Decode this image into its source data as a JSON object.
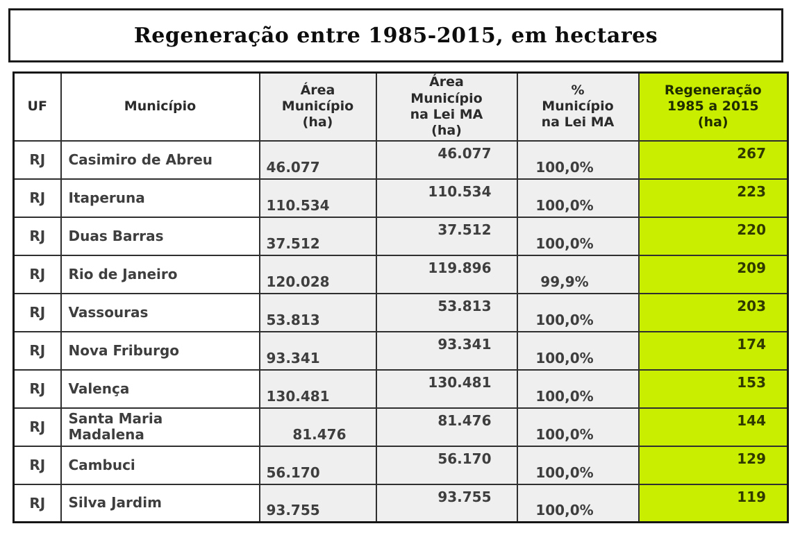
{
  "page_title": "Regeneração entre 1985-2015, em hectares",
  "colors": {
    "highlight_green": "#c9ee00",
    "muted_gray": "#efefef",
    "border_dark": "#1a1a1a"
  },
  "chart_data": {
    "type": "table",
    "title": "Regeneração entre 1985-2015, em hectares",
    "columns": [
      {
        "key": "uf",
        "label": "UF",
        "lines": [
          "UF"
        ],
        "group": "plain"
      },
      {
        "key": "municipio",
        "label": "Município",
        "lines": [
          "Município"
        ],
        "group": "plain"
      },
      {
        "key": "area",
        "label": "Área Município (ha)",
        "lines": [
          "Área",
          "Município",
          "(ha)"
        ],
        "group": "muted"
      },
      {
        "key": "area_lei",
        "label": "Área Município na Lei MA (ha)",
        "lines": [
          "Área",
          "Município",
          "na Lei MA",
          "(ha)"
        ],
        "group": "muted"
      },
      {
        "key": "pct",
        "label": "% Município na Lei MA",
        "lines": [
          "%",
          "Município",
          "na Lei MA"
        ],
        "group": "muted"
      },
      {
        "key": "reg",
        "label": "Regeneração 1985 a 2015 (ha)",
        "lines": [
          "Regeneração",
          "1985 a 2015",
          "(ha)"
        ],
        "group": "highlight"
      }
    ],
    "rows": [
      {
        "uf": "RJ",
        "municipio": "Casimiro de Abreu",
        "area": "46.077",
        "area_lei": "46.077",
        "pct": "100,0%",
        "reg": "267"
      },
      {
        "uf": "RJ",
        "municipio": "Itaperuna",
        "area": "110.534",
        "area_lei": "110.534",
        "pct": "100,0%",
        "reg": "223"
      },
      {
        "uf": "RJ",
        "municipio": "Duas Barras",
        "area": "37.512",
        "area_lei": "37.512",
        "pct": "100,0%",
        "reg": "220"
      },
      {
        "uf": "RJ",
        "municipio": "Rio de Janeiro",
        "area": "120.028",
        "area_lei": "119.896",
        "pct": "99,9%",
        "reg": "209"
      },
      {
        "uf": "RJ",
        "municipio": "Vassouras",
        "area": "53.813",
        "area_lei": "53.813",
        "pct": "100,0%",
        "reg": "203"
      },
      {
        "uf": "RJ",
        "municipio": "Nova Friburgo",
        "area": "93.341",
        "area_lei": "93.341",
        "pct": "100,0%",
        "reg": "174"
      },
      {
        "uf": "RJ",
        "municipio": "Valença",
        "area": "130.481",
        "area_lei": "130.481",
        "pct": "100,0%",
        "reg": "153"
      },
      {
        "uf": "RJ",
        "municipio": [
          "Santa Maria",
          "Madalena"
        ],
        "area": "81.476",
        "area_align": "right",
        "area_lei": "81.476",
        "pct": "100,0%",
        "reg": "144"
      },
      {
        "uf": "RJ",
        "municipio": "Cambuci",
        "area": "56.170",
        "area_lei": "56.170",
        "pct": "100,0%",
        "reg": "129"
      },
      {
        "uf": "RJ",
        "municipio": "Silva Jardim",
        "area": "93.755",
        "area_lei": "93.755",
        "pct": "100,0%",
        "reg": "119"
      }
    ]
  }
}
